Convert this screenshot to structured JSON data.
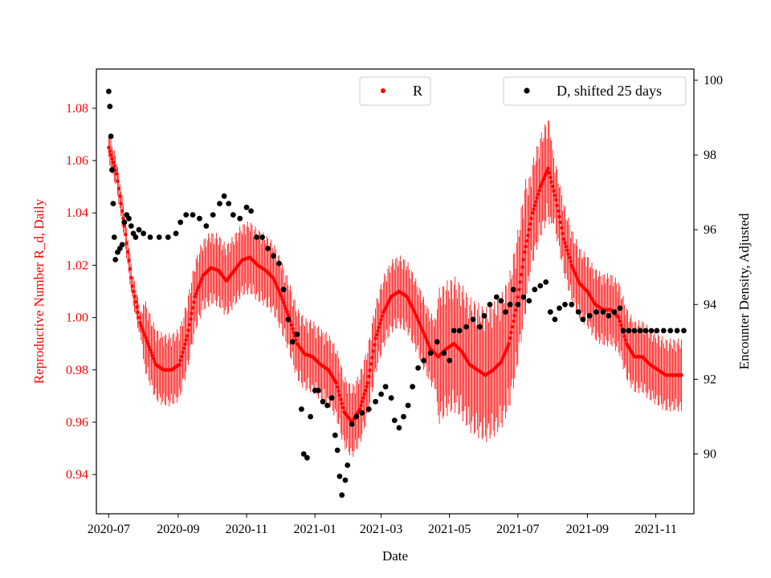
{
  "chart_data": {
    "type": "scatter",
    "title": "",
    "xlabel": "Date",
    "ylabel_left": "Reproductive Number R_d, Daily",
    "ylabel_right": "Encounter Density, Adjusted",
    "xlim": [
      "2020-06-20",
      "2021-12-05"
    ],
    "ylim_left": [
      0.925,
      1.095
    ],
    "ylim_right": [
      88.4,
      100.3
    ],
    "x_ticks": [
      "2020-07",
      "2020-09",
      "2020-11",
      "2021-01",
      "2021-03",
      "2021-05",
      "2021-07",
      "2021-09",
      "2021-11"
    ],
    "y_ticks_left": [
      "0.94",
      "0.96",
      "0.98",
      "1.00",
      "1.02",
      "1.04",
      "1.06",
      "1.08"
    ],
    "y_ticks_right": [
      "90",
      "92",
      "94",
      "96",
      "98",
      "100"
    ],
    "colors": {
      "R": "#ff0000",
      "D": "#000000",
      "axis": "#000000"
    },
    "legend": {
      "R": {
        "label": "R",
        "position": "top-center"
      },
      "D": {
        "label": "D, shifted 25 days",
        "position": "top-right"
      }
    },
    "series": [
      {
        "name": "R",
        "axis": "left",
        "marker": "point",
        "errorbars": true,
        "points": [
          [
            "2020-07-01",
            1.065
          ],
          [
            "2020-07-08",
            1.055
          ],
          [
            "2020-07-15",
            1.035
          ],
          [
            "2020-07-22",
            1.012
          ],
          [
            "2020-07-29",
            0.998
          ],
          [
            "2020-08-05",
            0.99
          ],
          [
            "2020-08-12",
            0.982
          ],
          [
            "2020-08-19",
            0.98
          ],
          [
            "2020-08-26",
            0.98
          ],
          [
            "2020-09-02",
            0.982
          ],
          [
            "2020-09-09",
            0.993
          ],
          [
            "2020-09-16",
            1.008
          ],
          [
            "2020-09-23",
            1.016
          ],
          [
            "2020-09-30",
            1.019
          ],
          [
            "2020-10-07",
            1.018
          ],
          [
            "2020-10-14",
            1.014
          ],
          [
            "2020-10-21",
            1.018
          ],
          [
            "2020-10-28",
            1.022
          ],
          [
            "2020-11-04",
            1.023
          ],
          [
            "2020-11-11",
            1.02
          ],
          [
            "2020-11-18",
            1.018
          ],
          [
            "2020-11-25",
            1.015
          ],
          [
            "2020-12-02",
            1.008
          ],
          [
            "2020-12-09",
            1.0
          ],
          [
            "2020-12-16",
            0.99
          ],
          [
            "2020-12-23",
            0.986
          ],
          [
            "2020-12-30",
            0.985
          ],
          [
            "2021-01-06",
            0.982
          ],
          [
            "2021-01-13",
            0.98
          ],
          [
            "2021-01-20",
            0.975
          ],
          [
            "2021-01-27",
            0.964
          ],
          [
            "2021-02-03",
            0.96
          ],
          [
            "2021-02-10",
            0.965
          ],
          [
            "2021-02-17",
            0.975
          ],
          [
            "2021-02-24",
            0.992
          ],
          [
            "2021-03-03",
            1.002
          ],
          [
            "2021-03-10",
            1.008
          ],
          [
            "2021-03-17",
            1.01
          ],
          [
            "2021-03-24",
            1.008
          ],
          [
            "2021-03-31",
            1.002
          ],
          [
            "2021-04-07",
            0.995
          ],
          [
            "2021-04-14",
            0.988
          ],
          [
            "2021-04-21",
            0.985
          ],
          [
            "2021-04-28",
            0.988
          ],
          [
            "2021-05-05",
            0.99
          ],
          [
            "2021-05-12",
            0.987
          ],
          [
            "2021-05-19",
            0.982
          ],
          [
            "2021-05-26",
            0.98
          ],
          [
            "2021-06-02",
            0.978
          ],
          [
            "2021-06-09",
            0.98
          ],
          [
            "2021-06-16",
            0.983
          ],
          [
            "2021-06-23",
            0.99
          ],
          [
            "2021-06-30",
            1.005
          ],
          [
            "2021-07-07",
            1.025
          ],
          [
            "2021-07-14",
            1.04
          ],
          [
            "2021-07-21",
            1.05
          ],
          [
            "2021-07-28",
            1.057
          ],
          [
            "2021-08-04",
            1.045
          ],
          [
            "2021-08-11",
            1.03
          ],
          [
            "2021-08-18",
            1.02
          ],
          [
            "2021-08-25",
            1.013
          ],
          [
            "2021-09-01",
            1.01
          ],
          [
            "2021-09-08",
            1.005
          ],
          [
            "2021-09-15",
            1.003
          ],
          [
            "2021-09-22",
            1.003
          ],
          [
            "2021-09-29",
            1.0
          ],
          [
            "2021-10-06",
            0.99
          ],
          [
            "2021-10-13",
            0.985
          ],
          [
            "2021-10-20",
            0.985
          ],
          [
            "2021-10-27",
            0.982
          ],
          [
            "2021-11-03",
            0.98
          ],
          [
            "2021-11-10",
            0.978
          ],
          [
            "2021-11-17",
            0.978
          ],
          [
            "2021-11-24",
            0.978
          ]
        ]
      },
      {
        "name": "D, shifted 25 days",
        "axis": "right",
        "marker": "dot",
        "points": [
          [
            "2020-07-01",
            99.7
          ],
          [
            "2020-07-02",
            99.3
          ],
          [
            "2020-07-03",
            98.5
          ],
          [
            "2020-07-04",
            97.6
          ],
          [
            "2020-07-05",
            96.7
          ],
          [
            "2020-07-06",
            95.8
          ],
          [
            "2020-07-07",
            95.2
          ],
          [
            "2020-07-09",
            95.4
          ],
          [
            "2020-07-11",
            95.5
          ],
          [
            "2020-07-13",
            95.6
          ],
          [
            "2020-07-15",
            96.2
          ],
          [
            "2020-07-17",
            96.4
          ],
          [
            "2020-07-19",
            96.3
          ],
          [
            "2020-07-21",
            96.1
          ],
          [
            "2020-07-23",
            95.9
          ],
          [
            "2020-07-25",
            95.8
          ],
          [
            "2020-07-28",
            96.0
          ],
          [
            "2020-08-01",
            95.9
          ],
          [
            "2020-08-07",
            95.8
          ],
          [
            "2020-08-15",
            95.8
          ],
          [
            "2020-08-23",
            95.8
          ],
          [
            "2020-08-30",
            95.9
          ],
          [
            "2020-09-03",
            96.2
          ],
          [
            "2020-09-08",
            96.4
          ],
          [
            "2020-09-14",
            96.4
          ],
          [
            "2020-09-20",
            96.3
          ],
          [
            "2020-09-26",
            96.1
          ],
          [
            "2020-10-02",
            96.4
          ],
          [
            "2020-10-08",
            96.7
          ],
          [
            "2020-10-12",
            96.9
          ],
          [
            "2020-10-16",
            96.7
          ],
          [
            "2020-10-20",
            96.4
          ],
          [
            "2020-10-26",
            96.3
          ],
          [
            "2020-11-01",
            96.6
          ],
          [
            "2020-11-05",
            96.5
          ],
          [
            "2020-11-10",
            95.8
          ],
          [
            "2020-11-15",
            95.8
          ],
          [
            "2020-11-20",
            95.5
          ],
          [
            "2020-11-25",
            95.3
          ],
          [
            "2020-11-30",
            95.1
          ],
          [
            "2020-12-04",
            94.4
          ],
          [
            "2020-12-08",
            93.6
          ],
          [
            "2020-12-12",
            93.0
          ],
          [
            "2020-12-16",
            93.2
          ],
          [
            "2020-12-20",
            91.2
          ],
          [
            "2020-12-22",
            90.0
          ],
          [
            "2020-12-25",
            89.9
          ],
          [
            "2020-12-28",
            91.0
          ],
          [
            "2021-01-01",
            91.7
          ],
          [
            "2021-01-04",
            91.7
          ],
          [
            "2021-01-08",
            91.4
          ],
          [
            "2021-01-12",
            91.3
          ],
          [
            "2021-01-16",
            91.5
          ],
          [
            "2021-01-19",
            90.5
          ],
          [
            "2021-01-21",
            90.1
          ],
          [
            "2021-01-23",
            89.4
          ],
          [
            "2021-01-25",
            88.9
          ],
          [
            "2021-01-28",
            89.3
          ],
          [
            "2021-01-30",
            89.7
          ],
          [
            "2021-02-03",
            90.8
          ],
          [
            "2021-02-07",
            91.0
          ],
          [
            "2021-02-12",
            91.1
          ],
          [
            "2021-02-18",
            91.2
          ],
          [
            "2021-02-24",
            91.4
          ],
          [
            "2021-03-01",
            91.6
          ],
          [
            "2021-03-05",
            91.8
          ],
          [
            "2021-03-10",
            91.5
          ],
          [
            "2021-03-13",
            90.9
          ],
          [
            "2021-03-17",
            90.7
          ],
          [
            "2021-03-21",
            91.0
          ],
          [
            "2021-03-25",
            91.3
          ],
          [
            "2021-03-29",
            91.8
          ],
          [
            "2021-04-03",
            92.3
          ],
          [
            "2021-04-08",
            92.5
          ],
          [
            "2021-04-14",
            92.7
          ],
          [
            "2021-04-20",
            93.0
          ],
          [
            "2021-04-26",
            92.7
          ],
          [
            "2021-05-01",
            92.5
          ],
          [
            "2021-05-05",
            93.3
          ],
          [
            "2021-05-10",
            93.3
          ],
          [
            "2021-05-16",
            93.4
          ],
          [
            "2021-05-22",
            93.6
          ],
          [
            "2021-05-28",
            93.4
          ],
          [
            "2021-06-01",
            93.7
          ],
          [
            "2021-06-06",
            94.0
          ],
          [
            "2021-06-12",
            94.2
          ],
          [
            "2021-06-16",
            94.1
          ],
          [
            "2021-06-20",
            93.8
          ],
          [
            "2021-06-24",
            94.0
          ],
          [
            "2021-06-27",
            94.4
          ],
          [
            "2021-07-01",
            94.0
          ],
          [
            "2021-07-06",
            94.2
          ],
          [
            "2021-07-11",
            94.1
          ],
          [
            "2021-07-16",
            94.4
          ],
          [
            "2021-07-21",
            94.5
          ],
          [
            "2021-07-26",
            94.6
          ],
          [
            "2021-07-30",
            93.8
          ],
          [
            "2021-08-03",
            93.6
          ],
          [
            "2021-08-07",
            93.9
          ],
          [
            "2021-08-12",
            94.0
          ],
          [
            "2021-08-18",
            94.0
          ],
          [
            "2021-08-24",
            93.8
          ],
          [
            "2021-08-28",
            93.6
          ],
          [
            "2021-09-03",
            93.7
          ],
          [
            "2021-09-09",
            93.8
          ],
          [
            "2021-09-15",
            93.8
          ],
          [
            "2021-09-20",
            93.7
          ],
          [
            "2021-09-25",
            93.8
          ],
          [
            "2021-09-30",
            93.9
          ],
          [
            "2021-10-03",
            93.3
          ],
          [
            "2021-10-08",
            93.3
          ],
          [
            "2021-10-13",
            93.3
          ],
          [
            "2021-10-18",
            93.3
          ],
          [
            "2021-10-23",
            93.3
          ],
          [
            "2021-10-28",
            93.3
          ],
          [
            "2021-11-02",
            93.3
          ],
          [
            "2021-11-08",
            93.3
          ],
          [
            "2021-11-14",
            93.3
          ],
          [
            "2021-11-20",
            93.3
          ],
          [
            "2021-11-26",
            93.3
          ]
        ]
      }
    ]
  }
}
